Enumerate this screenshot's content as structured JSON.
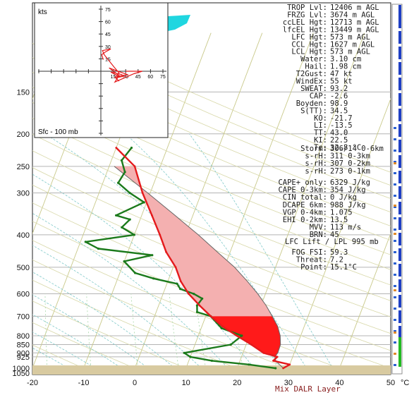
{
  "chart_data": {
    "type": "line",
    "title": "",
    "xlabel": "",
    "ylabel": "",
    "x_unit": "°C",
    "pressure_axis": "log",
    "xlim": [
      -20,
      50
    ],
    "ylim_mb": [
      1050,
      100
    ],
    "temperature_ticks": [
      "-20",
      "-10",
      "0",
      "10",
      "20",
      "30",
      "40",
      "50"
    ],
    "pressure_ticks": [
      "150",
      "200",
      "250",
      "300",
      "400",
      "500",
      "600",
      "700",
      "800",
      "850",
      "900",
      "925",
      "1000",
      "1050"
    ],
    "bottom_label": "Mix DALR Layer",
    "colors": {
      "temperature": "#e41a1c",
      "dewpoint": "#1b7a1b",
      "cape_fill": "#f4b0b0",
      "cin_fill": "#ff1a1a",
      "wind_trace": "#e41a1c",
      "ground": "#d8caa0",
      "cyan_top": "#1fd6e0",
      "bar_blue": "#1f3fc4",
      "bar_green": "#22bb22"
    },
    "series": [
      {
        "key": "temperature",
        "points": [
          [
            29.0,
            1000
          ],
          [
            30.0,
            975
          ],
          [
            26.5,
            950
          ],
          [
            27.0,
            925
          ],
          [
            24.0,
            900
          ],
          [
            21.0,
            850
          ],
          [
            17.5,
            800
          ],
          [
            14.0,
            750
          ],
          [
            11.0,
            700
          ],
          [
            8.0,
            650
          ],
          [
            5.0,
            600
          ],
          [
            2.5,
            550
          ],
          [
            0.5,
            500
          ],
          [
            -2.5,
            450
          ],
          [
            -5.0,
            400
          ],
          [
            -8.0,
            350
          ],
          [
            -11.5,
            300
          ],
          [
            -15.0,
            250
          ],
          [
            -20.0,
            220
          ]
        ]
      },
      {
        "key": "dewpoint",
        "points": [
          [
            27.5,
            1000
          ],
          [
            22.0,
            975
          ],
          [
            14.5,
            950
          ],
          [
            10.0,
            925
          ],
          [
            8.5,
            900
          ],
          [
            17.0,
            850
          ],
          [
            18.5,
            800
          ],
          [
            14.0,
            760
          ],
          [
            11.0,
            700
          ],
          [
            8.0,
            680
          ],
          [
            7.5,
            650
          ],
          [
            8.0,
            620
          ],
          [
            6.0,
            600
          ],
          [
            3.0,
            580
          ],
          [
            2.0,
            560
          ],
          [
            -3.0,
            540
          ],
          [
            -7.0,
            520
          ],
          [
            -10.0,
            480
          ],
          [
            -5.0,
            460
          ],
          [
            -16.0,
            440
          ],
          [
            -19.0,
            420
          ],
          [
            -10.0,
            400
          ],
          [
            -13.0,
            380
          ],
          [
            -12.0,
            360
          ],
          [
            -15.0,
            350
          ],
          [
            -10.5,
            320
          ],
          [
            -14.0,
            300
          ],
          [
            -17.0,
            280
          ],
          [
            -16.5,
            260
          ],
          [
            -18.0,
            240
          ],
          [
            -17.0,
            220
          ]
        ]
      },
      {
        "key": "parcel",
        "points": [
          [
            29.0,
            1000
          ],
          [
            28.0,
            975
          ],
          [
            27.0,
            950
          ],
          [
            26.5,
            925
          ],
          [
            26.8,
            900
          ],
          [
            26.7,
            850
          ],
          [
            26.0,
            800
          ],
          [
            24.8,
            750
          ],
          [
            23.0,
            700
          ],
          [
            21.0,
            650
          ],
          [
            18.5,
            600
          ],
          [
            15.5,
            550
          ],
          [
            12.0,
            500
          ],
          [
            7.5,
            450
          ],
          [
            2.5,
            400
          ],
          [
            -3.5,
            350
          ],
          [
            -10.5,
            300
          ],
          [
            -19.0,
            250
          ]
        ]
      }
    ],
    "hodograph": {
      "label": "kts",
      "scale_labels": [
        "75",
        "60",
        "45",
        "30",
        "15",
        "15",
        "30",
        "45",
        "60",
        "75"
      ],
      "layer_label": "Sfc - 100 mb",
      "trace_uv": [
        [
          3,
          14
        ],
        [
          1,
          20
        ],
        [
          5,
          23
        ],
        [
          12,
          27
        ],
        [
          2,
          25
        ],
        [
          4,
          20
        ],
        [
          16,
          5
        ],
        [
          22,
          -2
        ],
        [
          19,
          -5
        ],
        [
          23,
          -7
        ],
        [
          12,
          -1
        ],
        [
          25,
          -4
        ],
        [
          28,
          -6
        ],
        [
          18,
          -8
        ],
        [
          22,
          -12
        ],
        [
          17,
          -7
        ],
        [
          32,
          -4
        ],
        [
          10,
          4
        ],
        [
          22,
          -5
        ],
        [
          17,
          -13
        ],
        [
          40,
          -3
        ],
        [
          50,
          0
        ],
        [
          30,
          0
        ]
      ]
    },
    "parameters": [
      {
        "label": "TROP Lvl:",
        "value": "12406 m AGL"
      },
      {
        "label": "FRZG Lvl:",
        "value": "3674 m AGL"
      },
      {
        "label": "ccLEL Hgt:",
        "value": "12713 m AGL"
      },
      {
        "label": "lfcEL Hgt:",
        "value": "13449 m AGL"
      },
      {
        "label": "LFC Hgt:",
        "value": "573 m AGL"
      },
      {
        "label": "CCL Hgt:",
        "value": "1627 m AGL"
      },
      {
        "label": "LCL Hgt:",
        "value": "573 m AGL"
      },
      {
        "label": "Water:",
        "value": "3.10 cm"
      },
      {
        "label": "Hail:",
        "value": "1.98 cm"
      },
      {
        "label": "T2Gust:",
        "value": "47 kt"
      },
      {
        "label": "WindEx:",
        "value": "55 kt"
      },
      {
        "label": "SWEAT:",
        "value": "93.2"
      },
      {
        "label": "CAP:",
        "value": "-2.6"
      },
      {
        "label": "Boyden:",
        "value": "98.9"
      },
      {
        "label": "S(TT):",
        "value": "34.5"
      },
      {
        "label": "KO:",
        "value": "-21.7"
      },
      {
        "label": "LI:",
        "value": "-13.5"
      },
      {
        "label": "TT:",
        "value": "43.0"
      },
      {
        "label": "KI:",
        "value": "22.5"
      },
      {
        "label": "Tc:",
        "value": "32.8 °C"
      }
    ],
    "storm": [
      {
        "label": "Storm:",
        "value": "306/14 0-6km"
      },
      {
        "label": "s-rH:",
        "value": "311  0-3km"
      },
      {
        "label": "s-rH:",
        "value": "307  0-2km"
      },
      {
        "label": "s-rH:",
        "value": "273  0-1km"
      }
    ],
    "cape_block": [
      {
        "label": "CAPE+ only:",
        "value": "6329 J/kg"
      },
      {
        "label": "CAPE 0-3km:",
        "value": "354 J/kg"
      },
      {
        "label": "CIN total:",
        "value": "0 J/kg"
      },
      {
        "label": "DCAPE 6km:",
        "value": "988 J/kg"
      },
      {
        "label": "VGP 0-4km:",
        "value": "1.075"
      },
      {
        "label": "EHI 0-2km:",
        "value": "13.5"
      },
      {
        "label": "MVV:",
        "value": "113 m/s"
      },
      {
        "label": "BRN:",
        "value": "45"
      }
    ],
    "lift_label": "LFC Lift / LPL 995 mb",
    "fog": [
      {
        "label": "FOG FSI:",
        "value": "59.3"
      },
      {
        "label": "Threat:",
        "value": "7.2"
      },
      {
        "label": "Point:",
        "value": "15.1°C"
      }
    ]
  }
}
